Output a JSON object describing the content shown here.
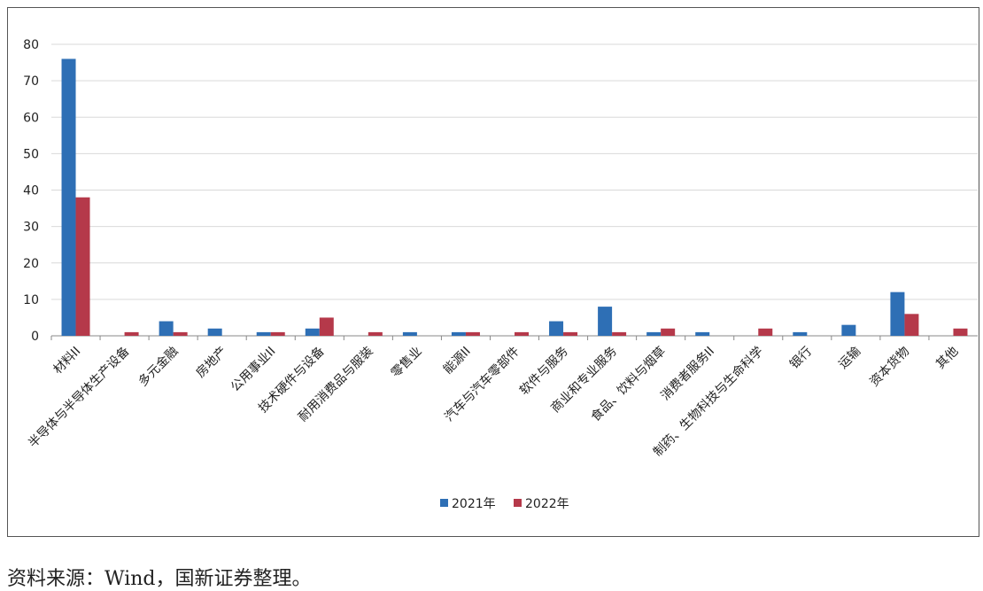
{
  "chart_data": {
    "type": "bar",
    "categories": [
      "材料II",
      "半导体与半导体生产设备",
      "多元金融",
      "房地产",
      "公用事业II",
      "技术硬件与设备",
      "耐用消费品与服装",
      "零售业",
      "能源II",
      "汽车与汽车零部件",
      "软件与服务",
      "商业和专业服务",
      "食品、饮料与烟草",
      "消费者服务II",
      "制药、生物科技与生命科学",
      "银行",
      "运输",
      "资本货物",
      "其他"
    ],
    "series": [
      {
        "name": "2021年",
        "color": "#2e6fb5",
        "values": [
          76,
          0,
          4,
          2,
          1,
          2,
          0,
          1,
          1,
          0,
          4,
          8,
          1,
          1,
          0,
          1,
          3,
          12,
          0
        ]
      },
      {
        "name": "2022年",
        "color": "#b5394a",
        "values": [
          38,
          1,
          1,
          0,
          1,
          5,
          1,
          0,
          1,
          1,
          1,
          1,
          2,
          0,
          2,
          0,
          0,
          6,
          2
        ]
      }
    ],
    "ylim": [
      0,
      80
    ],
    "yticks": [
      0,
      10,
      20,
      30,
      40,
      50,
      60,
      70,
      80
    ],
    "grid": true,
    "legend": "bottom",
    "source": "资料来源：Wind，国新证券整理。"
  }
}
